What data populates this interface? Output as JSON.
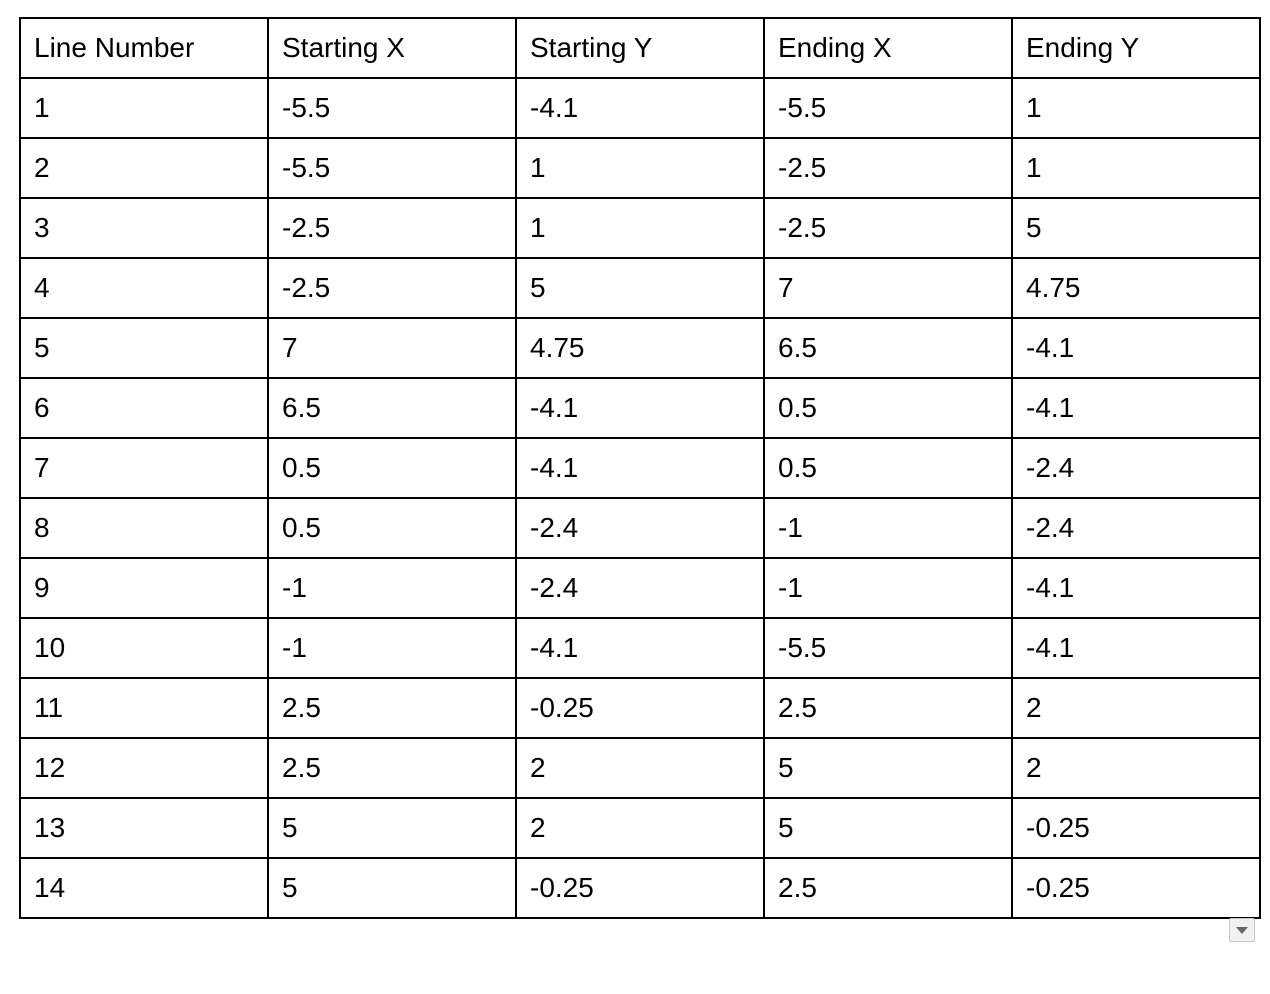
{
  "table": {
    "headers": [
      "Line Number",
      "Starting X",
      "Starting Y",
      "Ending X",
      "Ending Y"
    ],
    "rows": [
      [
        "1",
        "-5.5",
        "-4.1",
        "-5.5",
        "1"
      ],
      [
        "2",
        "-5.5",
        "1",
        "-2.5",
        "1"
      ],
      [
        "3",
        "-2.5",
        "1",
        "-2.5",
        "5"
      ],
      [
        "4",
        "-2.5",
        "5",
        "7",
        "4.75"
      ],
      [
        "5",
        "7",
        "4.75",
        "6.5",
        "-4.1"
      ],
      [
        "6",
        "6.5",
        "-4.1",
        "0.5",
        "-4.1"
      ],
      [
        "7",
        "0.5",
        "-4.1",
        "0.5",
        "-2.4"
      ],
      [
        "8",
        "0.5",
        "-2.4",
        "-1",
        "-2.4"
      ],
      [
        "9",
        "-1",
        "-2.4",
        "-1",
        "-4.1"
      ],
      [
        "10",
        "-1",
        "-4.1",
        "-5.5",
        "-4.1"
      ],
      [
        "11",
        "2.5",
        "-0.25",
        "2.5",
        "2"
      ],
      [
        "12",
        "2.5",
        "2",
        "5",
        "2"
      ],
      [
        "13",
        "5",
        "2",
        "5",
        "-0.25"
      ],
      [
        "14",
        "5",
        "-0.25",
        "2.5",
        "-0.25"
      ]
    ]
  },
  "dropdown": {
    "icon": "chevron-down-icon"
  },
  "colors": {
    "border": "#000000",
    "background": "#ffffff",
    "dropdown_bg": "#f1f1f1",
    "dropdown_arrow": "#666666"
  }
}
